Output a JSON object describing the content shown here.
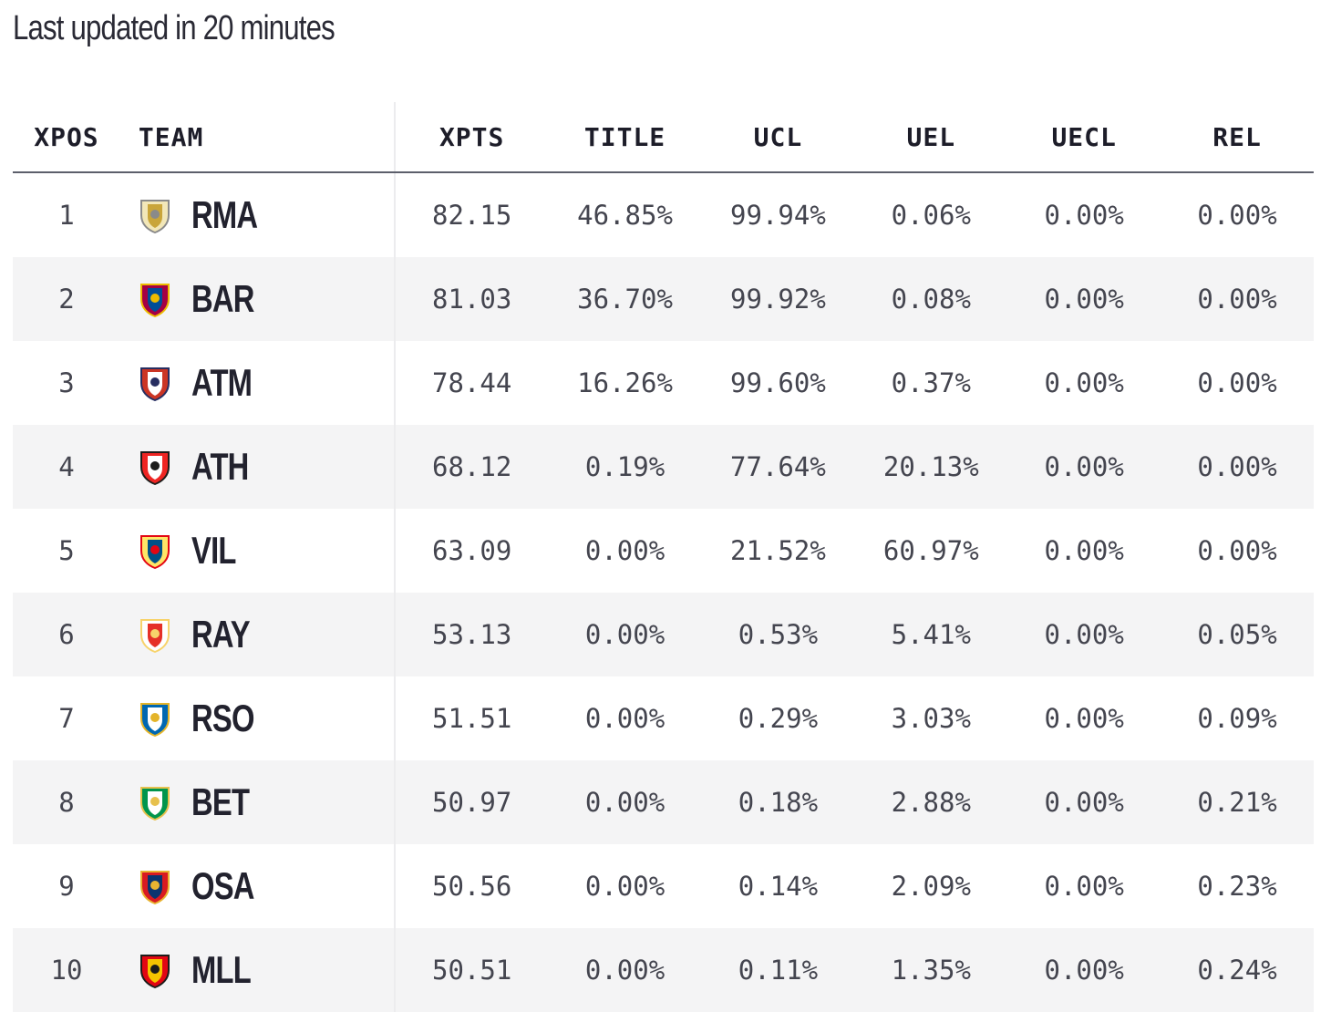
{
  "header": {
    "updated_text": "Last updated in 20 minutes"
  },
  "table": {
    "columns": [
      "XPOS",
      "TEAM",
      "XPTS",
      "TITLE",
      "UCL",
      "UEL",
      "UECL",
      "REL"
    ],
    "rows": [
      {
        "pos": "1",
        "team": "RMA",
        "crest": "real-madrid-crest-icon",
        "xpts": "82.15",
        "title": "46.85%",
        "ucl": "99.94%",
        "uel": "0.06%",
        "uecl": "0.00%",
        "rel": "0.00%"
      },
      {
        "pos": "2",
        "team": "BAR",
        "crest": "barcelona-crest-icon",
        "xpts": "81.03",
        "title": "36.70%",
        "ucl": "99.92%",
        "uel": "0.08%",
        "uecl": "0.00%",
        "rel": "0.00%"
      },
      {
        "pos": "3",
        "team": "ATM",
        "crest": "atletico-madrid-crest-icon",
        "xpts": "78.44",
        "title": "16.26%",
        "ucl": "99.60%",
        "uel": "0.37%",
        "uecl": "0.00%",
        "rel": "0.00%"
      },
      {
        "pos": "4",
        "team": "ATH",
        "crest": "athletic-bilbao-crest-icon",
        "xpts": "68.12",
        "title": "0.19%",
        "ucl": "77.64%",
        "uel": "20.13%",
        "uecl": "0.00%",
        "rel": "0.00%"
      },
      {
        "pos": "5",
        "team": "VIL",
        "crest": "villarreal-crest-icon",
        "xpts": "63.09",
        "title": "0.00%",
        "ucl": "21.52%",
        "uel": "60.97%",
        "uecl": "0.00%",
        "rel": "0.00%"
      },
      {
        "pos": "6",
        "team": "RAY",
        "crest": "rayo-vallecano-crest-icon",
        "xpts": "53.13",
        "title": "0.00%",
        "ucl": "0.53%",
        "uel": "5.41%",
        "uecl": "0.00%",
        "rel": "0.05%"
      },
      {
        "pos": "7",
        "team": "RSO",
        "crest": "real-sociedad-crest-icon",
        "xpts": "51.51",
        "title": "0.00%",
        "ucl": "0.29%",
        "uel": "3.03%",
        "uecl": "0.00%",
        "rel": "0.09%"
      },
      {
        "pos": "8",
        "team": "BET",
        "crest": "real-betis-crest-icon",
        "xpts": "50.97",
        "title": "0.00%",
        "ucl": "0.18%",
        "uel": "2.88%",
        "uecl": "0.00%",
        "rel": "0.21%"
      },
      {
        "pos": "9",
        "team": "OSA",
        "crest": "osasuna-crest-icon",
        "xpts": "50.56",
        "title": "0.00%",
        "ucl": "0.14%",
        "uel": "2.09%",
        "uecl": "0.00%",
        "rel": "0.23%"
      },
      {
        "pos": "10",
        "team": "MLL",
        "crest": "mallorca-crest-icon",
        "xpts": "50.51",
        "title": "0.00%",
        "ucl": "0.11%",
        "uel": "1.35%",
        "uecl": "0.00%",
        "rel": "0.24%"
      }
    ]
  },
  "crest_colors": {
    "RMA": [
      "#f2e7b8",
      "#c9a53a",
      "#8a8a8a"
    ],
    "BAR": [
      "#a50044",
      "#004d98",
      "#edbb00"
    ],
    "ATM": [
      "#cb3524",
      "#ffffff",
      "#272e61"
    ],
    "ATH": [
      "#ee2523",
      "#ffffff",
      "#1d1d1b"
    ],
    "VIL": [
      "#ffe667",
      "#005187",
      "#e30613"
    ],
    "RAY": [
      "#ffffff",
      "#e53027",
      "#f7d36b"
    ],
    "RSO": [
      "#0067b1",
      "#ffffff",
      "#e4b429"
    ],
    "BET": [
      "#00954c",
      "#ffffff",
      "#e7c14e"
    ],
    "OSA": [
      "#d91a21",
      "#0a346f",
      "#e8b431"
    ],
    "MLL": [
      "#e20613",
      "#f6c500",
      "#1d1d1b"
    ]
  }
}
